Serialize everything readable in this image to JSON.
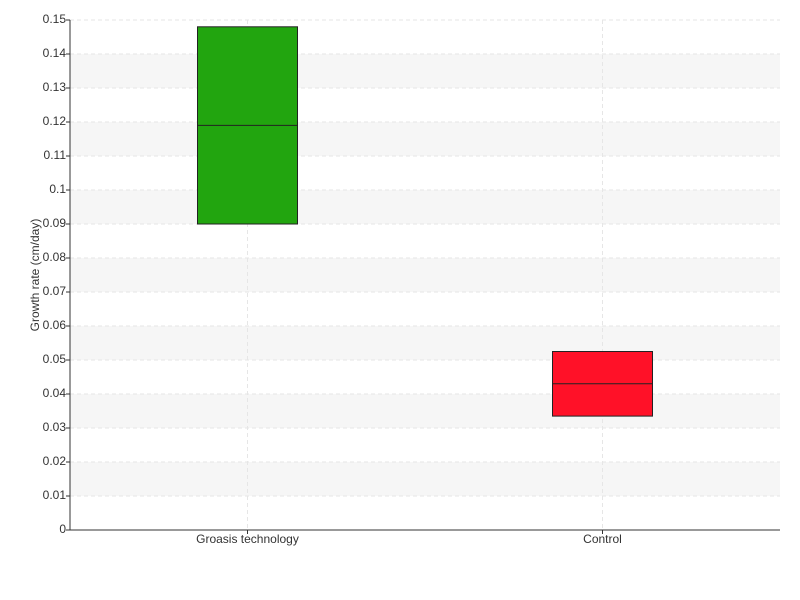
{
  "chart_data": {
    "type": "box",
    "y_label": "Growth rate (cm/day)",
    "categories": [
      "Groasis technology",
      "Control"
    ],
    "q1": [
      0.09,
      0.0335
    ],
    "median": [
      0.119,
      0.043
    ],
    "q3": [
      0.148,
      0.0525
    ],
    "colors": [
      "#22a50f",
      "#ff1128"
    ],
    "ylim": [
      0,
      0.15
    ],
    "yticks": [
      0,
      0.01,
      0.02,
      0.03,
      0.04,
      0.05,
      0.06,
      0.07,
      0.08,
      0.09,
      0.1,
      0.11,
      0.12,
      0.13,
      0.14,
      0.15
    ],
    "grid": true
  }
}
